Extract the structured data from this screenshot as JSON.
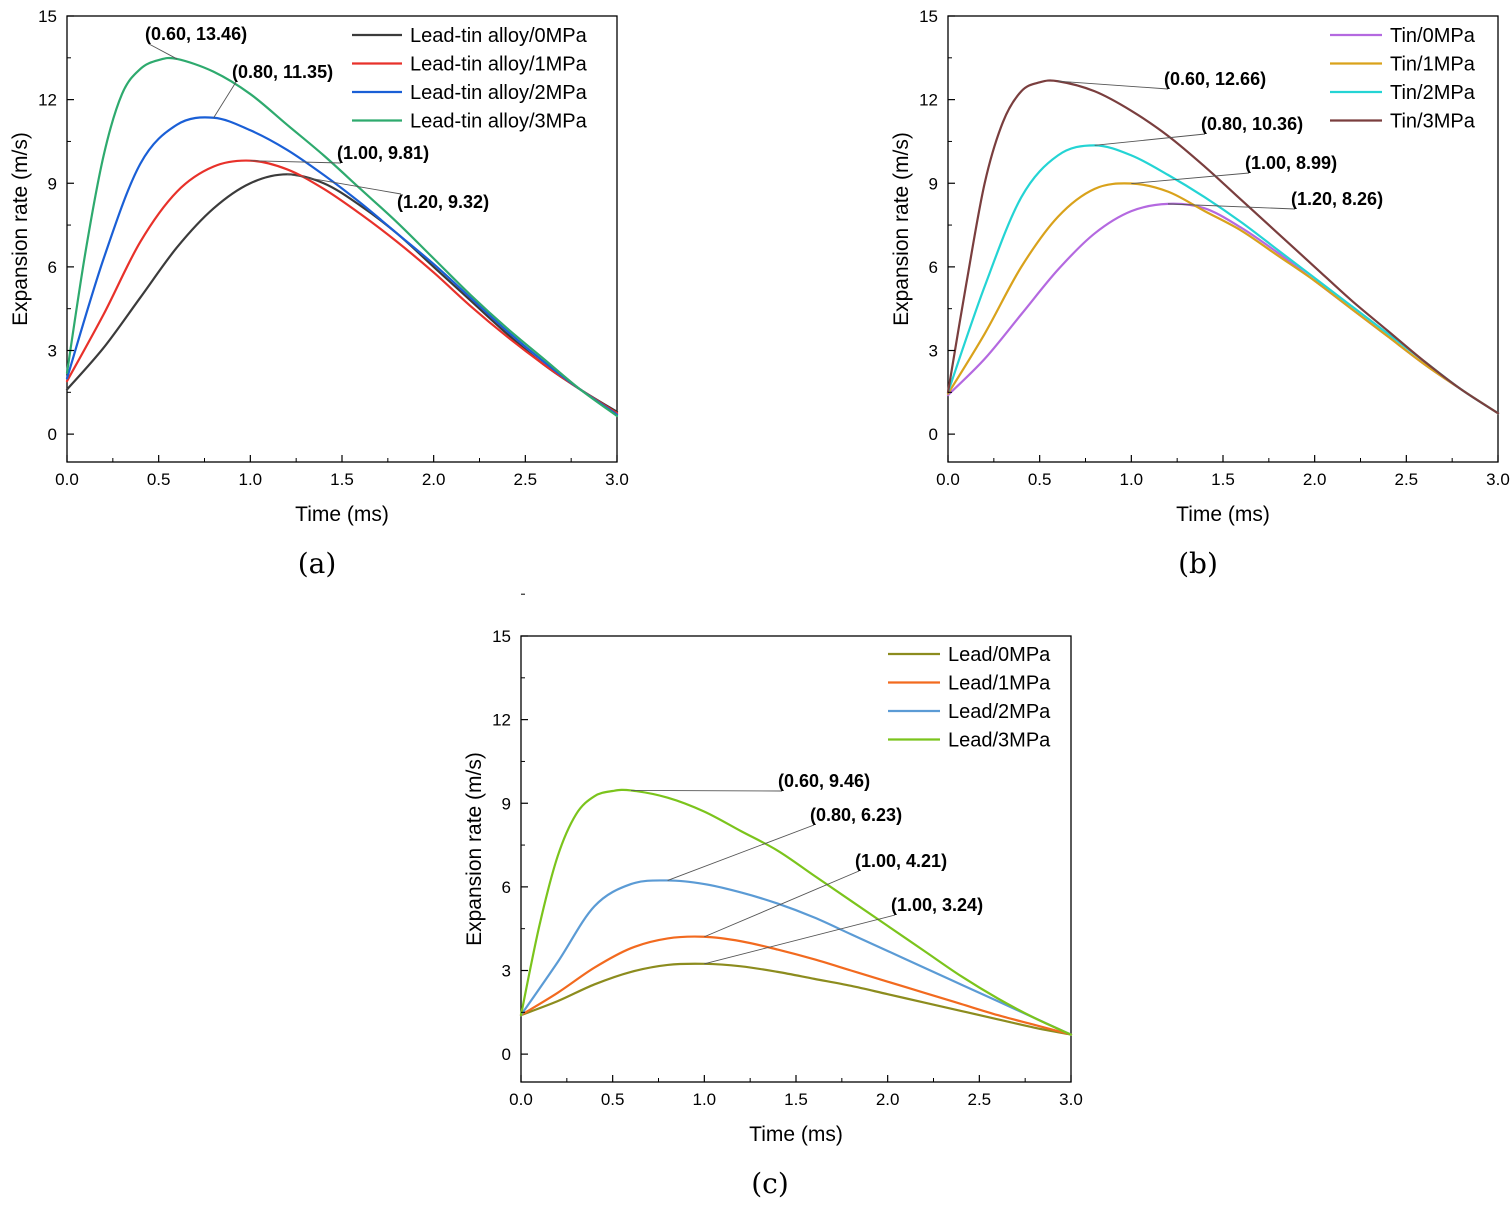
{
  "chart_data": [
    {
      "type": "line",
      "panel_label": "(a)",
      "xlabel": "Time (ms)",
      "ylabel": "Expansion rate (m/s)",
      "xlim": [
        0,
        3.0
      ],
      "ylim": [
        -1,
        15
      ],
      "xticks": [
        "0.0",
        "0.5",
        "1.0",
        "1.5",
        "2.0",
        "2.5",
        "3.0"
      ],
      "yticks": [
        "0",
        "3",
        "6",
        "9",
        "12",
        "15"
      ],
      "legend_position": "top-right",
      "series": [
        {
          "name": "Lead-tin alloy/0MPa",
          "color": "#3b3b3b",
          "x": [
            0,
            0.2,
            0.4,
            0.6,
            0.8,
            1.0,
            1.2,
            1.4,
            1.6,
            1.8,
            2.0,
            2.2,
            2.4,
            2.6,
            2.8,
            3.0
          ],
          "y": [
            1.6,
            3.1,
            4.9,
            6.7,
            8.1,
            9.0,
            9.32,
            9.0,
            8.2,
            7.2,
            6.0,
            4.8,
            3.6,
            2.5,
            1.6,
            0.8
          ]
        },
        {
          "name": "Lead-tin alloy/1MPa",
          "color": "#e8312a",
          "x": [
            0,
            0.2,
            0.4,
            0.6,
            0.8,
            1.0,
            1.2,
            1.4,
            1.6,
            1.8,
            2.0,
            2.2,
            2.4,
            2.6,
            2.8,
            3.0
          ],
          "y": [
            1.9,
            4.3,
            6.9,
            8.7,
            9.6,
            9.81,
            9.5,
            8.8,
            7.9,
            6.9,
            5.8,
            4.6,
            3.5,
            2.5,
            1.6,
            0.75
          ]
        },
        {
          "name": "Lead-tin alloy/2MPa",
          "color": "#1a5fd6",
          "x": [
            0,
            0.2,
            0.4,
            0.6,
            0.8,
            1.0,
            1.2,
            1.4,
            1.6,
            1.8,
            2.0,
            2.2,
            2.4,
            2.6,
            2.8,
            3.0
          ],
          "y": [
            2.0,
            6.3,
            9.7,
            11.1,
            11.35,
            10.9,
            10.2,
            9.3,
            8.3,
            7.2,
            6.1,
            4.9,
            3.7,
            2.6,
            1.6,
            0.7
          ]
        },
        {
          "name": "Lead-tin alloy/3MPa",
          "color": "#2eaa6e",
          "x": [
            0,
            0.1,
            0.2,
            0.3,
            0.4,
            0.5,
            0.6,
            0.8,
            1.0,
            1.2,
            1.4,
            1.6,
            1.8,
            2.0,
            2.2,
            2.4,
            2.6,
            2.8,
            3.0
          ],
          "y": [
            2.2,
            6.5,
            10.0,
            12.2,
            13.1,
            13.42,
            13.46,
            13.0,
            12.2,
            11.1,
            10.0,
            8.8,
            7.6,
            6.3,
            5.0,
            3.8,
            2.7,
            1.6,
            0.65
          ]
        }
      ],
      "annotations": [
        {
          "text": "(0.60, 13.46)",
          "x": 0.6,
          "y": 13.46
        },
        {
          "text": "(0.80, 11.35)",
          "x": 0.8,
          "y": 11.35
        },
        {
          "text": "(1.00, 9.81)",
          "x": 1.0,
          "y": 9.81
        },
        {
          "text": "(1.20, 9.32)",
          "x": 1.2,
          "y": 9.32
        }
      ]
    },
    {
      "type": "line",
      "panel_label": "(b)",
      "xlabel": "Time (ms)",
      "ylabel": "Expansion rate (m/s)",
      "xlim": [
        0,
        3.0
      ],
      "ylim": [
        -1,
        15
      ],
      "xticks": [
        "0.0",
        "0.5",
        "1.0",
        "1.5",
        "2.0",
        "2.5",
        "3.0"
      ],
      "yticks": [
        "0",
        "3",
        "6",
        "9",
        "12",
        "15"
      ],
      "legend_position": "top-right",
      "series": [
        {
          "name": "Tin/0MPa",
          "color": "#b469e0",
          "x": [
            0,
            0.2,
            0.4,
            0.6,
            0.8,
            1.0,
            1.2,
            1.4,
            1.6,
            1.8,
            2.0,
            2.2,
            2.4,
            2.6,
            2.8,
            3.0
          ],
          "y": [
            1.4,
            2.7,
            4.3,
            5.9,
            7.2,
            8.0,
            8.26,
            8.1,
            7.4,
            6.5,
            5.5,
            4.5,
            3.5,
            2.5,
            1.6,
            0.75
          ]
        },
        {
          "name": "Tin/1MPa",
          "color": "#d9a21b",
          "x": [
            0,
            0.2,
            0.4,
            0.6,
            0.8,
            1.0,
            1.2,
            1.4,
            1.6,
            1.8,
            2.0,
            2.2,
            2.4,
            2.6,
            2.8,
            3.0
          ],
          "y": [
            1.45,
            3.6,
            6.0,
            7.8,
            8.8,
            8.99,
            8.7,
            8.0,
            7.3,
            6.4,
            5.5,
            4.5,
            3.5,
            2.5,
            1.6,
            0.75
          ]
        },
        {
          "name": "Tin/2MPa",
          "color": "#24d4d4",
          "x": [
            0,
            0.2,
            0.4,
            0.6,
            0.8,
            1.0,
            1.2,
            1.4,
            1.6,
            1.8,
            2.0,
            2.2,
            2.4,
            2.6,
            2.8,
            3.0
          ],
          "y": [
            1.5,
            5.3,
            8.5,
            10.0,
            10.36,
            10.0,
            9.3,
            8.5,
            7.6,
            6.6,
            5.6,
            4.6,
            3.6,
            2.6,
            1.6,
            0.75
          ]
        },
        {
          "name": "Tin/3MPa",
          "color": "#7a3e3e",
          "x": [
            0,
            0.1,
            0.2,
            0.3,
            0.4,
            0.5,
            0.6,
            0.8,
            1.0,
            1.2,
            1.4,
            1.6,
            1.8,
            2.0,
            2.2,
            2.4,
            2.6,
            2.8,
            3.0
          ],
          "y": [
            1.5,
            5.4,
            9.0,
            11.2,
            12.3,
            12.62,
            12.66,
            12.3,
            11.6,
            10.7,
            9.6,
            8.4,
            7.2,
            6.0,
            4.8,
            3.7,
            2.6,
            1.6,
            0.75
          ]
        }
      ],
      "annotations": [
        {
          "text": "(0.60, 12.66)",
          "x": 0.6,
          "y": 12.66
        },
        {
          "text": "(0.80, 10.36)",
          "x": 0.8,
          "y": 10.36
        },
        {
          "text": "(1.00, 8.99)",
          "x": 1.0,
          "y": 8.99
        },
        {
          "text": "(1.20, 8.26)",
          "x": 1.2,
          "y": 8.26
        }
      ]
    },
    {
      "type": "line",
      "panel_label": "(c)",
      "xlabel": "Time (ms)",
      "ylabel": "Expansion rate (m/s)",
      "xlim": [
        0,
        3.0
      ],
      "ylim": [
        -1,
        15
      ],
      "xticks": [
        "0.0",
        "0.5",
        "1.0",
        "1.5",
        "2.0",
        "2.5",
        "3.0"
      ],
      "yticks": [
        "0",
        "3",
        "6",
        "9",
        "12",
        "15"
      ],
      "legend_position": "top-right",
      "series": [
        {
          "name": "Lead/0MPa",
          "color": "#8c8c1e",
          "x": [
            0,
            0.2,
            0.4,
            0.6,
            0.8,
            1.0,
            1.2,
            1.4,
            1.6,
            1.8,
            2.0,
            2.2,
            2.4,
            2.6,
            2.8,
            3.0
          ],
          "y": [
            1.4,
            1.9,
            2.5,
            2.95,
            3.2,
            3.24,
            3.15,
            2.95,
            2.7,
            2.45,
            2.15,
            1.85,
            1.55,
            1.25,
            0.95,
            0.7
          ]
        },
        {
          "name": "Lead/1MPa",
          "color": "#f26a1f",
          "x": [
            0,
            0.2,
            0.4,
            0.6,
            0.8,
            1.0,
            1.2,
            1.4,
            1.6,
            1.8,
            2.0,
            2.2,
            2.4,
            2.6,
            2.8,
            3.0
          ],
          "y": [
            1.4,
            2.2,
            3.1,
            3.8,
            4.15,
            4.21,
            4.05,
            3.75,
            3.4,
            3.0,
            2.6,
            2.2,
            1.8,
            1.4,
            1.05,
            0.7
          ]
        },
        {
          "name": "Lead/2MPa",
          "color": "#5b9bd5",
          "x": [
            0,
            0.2,
            0.4,
            0.6,
            0.8,
            1.0,
            1.2,
            1.4,
            1.6,
            1.8,
            2.0,
            2.2,
            2.4,
            2.6,
            2.8,
            3.0
          ],
          "y": [
            1.4,
            3.3,
            5.3,
            6.1,
            6.23,
            6.1,
            5.8,
            5.4,
            4.9,
            4.3,
            3.7,
            3.1,
            2.5,
            1.9,
            1.3,
            0.7
          ]
        },
        {
          "name": "Lead/3MPa",
          "color": "#7bc41c",
          "x": [
            0,
            0.1,
            0.2,
            0.3,
            0.4,
            0.5,
            0.6,
            0.8,
            1.0,
            1.2,
            1.4,
            1.6,
            1.8,
            2.0,
            2.2,
            2.4,
            2.6,
            2.8,
            3.0
          ],
          "y": [
            1.4,
            4.6,
            7.1,
            8.6,
            9.25,
            9.44,
            9.46,
            9.2,
            8.7,
            8.0,
            7.3,
            6.4,
            5.5,
            4.6,
            3.7,
            2.8,
            2.0,
            1.3,
            0.7
          ]
        }
      ],
      "annotations": [
        {
          "text": "(0.60, 9.46)",
          "x": 0.6,
          "y": 9.46
        },
        {
          "text": "(0.80, 6.23)",
          "x": 0.8,
          "y": 6.23
        },
        {
          "text": "(1.00, 4.21)",
          "x": 1.0,
          "y": 4.21
        },
        {
          "text": "(1.00, 3.24)",
          "x": 1.0,
          "y": 3.24
        }
      ]
    }
  ]
}
